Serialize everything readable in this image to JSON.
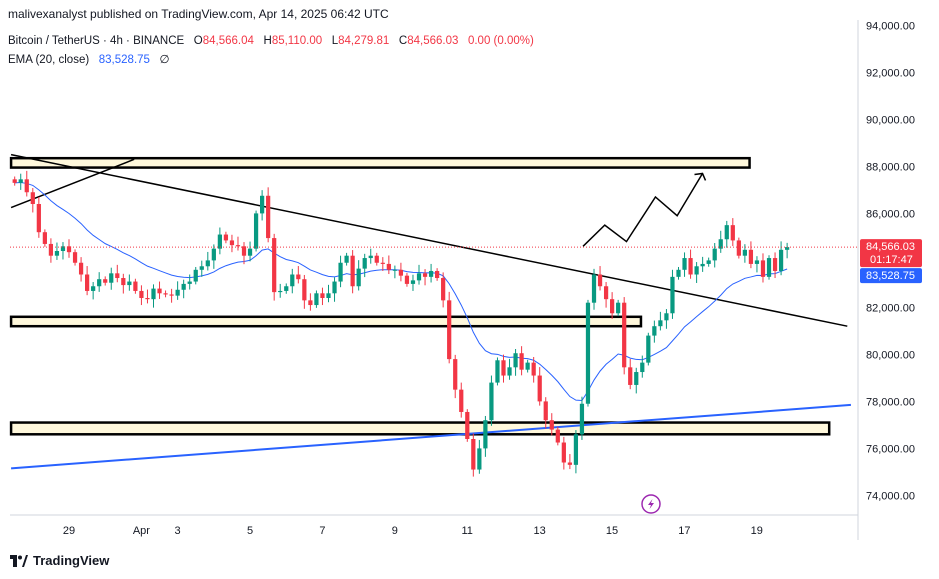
{
  "header": {
    "publish_text": "malivexanalyst published on TradingView.com, Apr 14, 2025 06:42 UTC",
    "symbol": "Bitcoin / TetherUS · 4h · BINANCE",
    "ohlc": {
      "o_label": "O",
      "o": "84,566.04",
      "h_label": "H",
      "h": "85,110.00",
      "l_label": "L",
      "l": "84,279.81",
      "c_label": "C",
      "c": "84,566.03",
      "change": "0.00 (0.00%)"
    },
    "ema_label": "EMA (20, close)",
    "ema_value": "83,528.75",
    "ema_extra": "∅"
  },
  "price_tags": {
    "last_price": "84,566.03",
    "countdown": "01:17:47",
    "ema": "83,528.75"
  },
  "footer": {
    "brand": "TradingView"
  },
  "colors": {
    "up": "#089981",
    "down": "#f23645",
    "ema": "#2962ff",
    "zone_fill": "#fff8dc",
    "trendline": "#000000",
    "support_line": "#2962ff"
  },
  "icons": {
    "lightning": "lightning-icon",
    "logo": "tradingview-logo-icon"
  },
  "chart_data": {
    "type": "candlestick",
    "title": "Bitcoin / TetherUS · 4h · BINANCE",
    "y_ticks": [
      "94,000.00",
      "92,000.00",
      "90,000.00",
      "88,000.00",
      "86,000.00",
      "84,000.00",
      "82,000.00",
      "80,000.00",
      "78,000.00",
      "76,000.00",
      "74,000.00"
    ],
    "y_tick_values": [
      94000,
      92000,
      90000,
      88000,
      86000,
      84000,
      82000,
      80000,
      78000,
      76000,
      74000
    ],
    "ylim": [
      73000,
      94600
    ],
    "x_ticks": [
      {
        "label": "29",
        "day": 0
      },
      {
        "label": "Apr",
        "day": 2
      },
      {
        "label": "3",
        "day": 3
      },
      {
        "label": "5",
        "day": 5
      },
      {
        "label": "7",
        "day": 7
      },
      {
        "label": "9",
        "day": 9
      },
      {
        "label": "11",
        "day": 11
      },
      {
        "label": "13",
        "day": 13
      },
      {
        "label": "15",
        "day": 15
      },
      {
        "label": "17",
        "day": 17
      },
      {
        "label": "19",
        "day": 19
      }
    ],
    "day_range": [
      -1.6,
      20.3
    ],
    "candle_interval_days": 0.1667,
    "candles_start_day": -1.5,
    "closes": [
      87300,
      87450,
      86900,
      86400,
      85200,
      84700,
      84200,
      84400,
      84600,
      84350,
      83900,
      83400,
      82700,
      82900,
      83200,
      83050,
      83450,
      83250,
      82950,
      83100,
      82700,
      82400,
      82350,
      82800,
      82600,
      82550,
      82500,
      82750,
      83000,
      83100,
      83600,
      83750,
      84000,
      84500,
      85100,
      84850,
      84650,
      84600,
      84200,
      84500,
      86000,
      86750,
      84950,
      82650,
      82700,
      82900,
      83400,
      83200,
      82300,
      82100,
      82600,
      82400,
      82600,
      83100,
      83900,
      84200,
      82900,
      83650,
      84100,
      84200,
      83900,
      83850,
      83600,
      83600,
      83350,
      83000,
      83150,
      83450,
      83300,
      83550,
      83250,
      82300,
      79800,
      78500,
      77550,
      76400,
      75100,
      76000,
      77200,
      78800,
      79750,
      79100,
      79450,
      80050,
      79350,
      79650,
      79100,
      78000,
      77200,
      76800,
      76250,
      75400,
      75300,
      76600,
      77900,
      82200,
      83400,
      82900,
      82350,
      81750,
      82200,
      79450,
      78700,
      79250,
      79650,
      80800,
      81200,
      81450,
      81750,
      83300,
      83600,
      84100,
      83400,
      83750,
      83850,
      84000,
      84500,
      84900,
      85500,
      84850,
      84200,
      84450,
      83850,
      84000,
      83300,
      84100,
      83550,
      84450,
      84566
    ]
  }
}
